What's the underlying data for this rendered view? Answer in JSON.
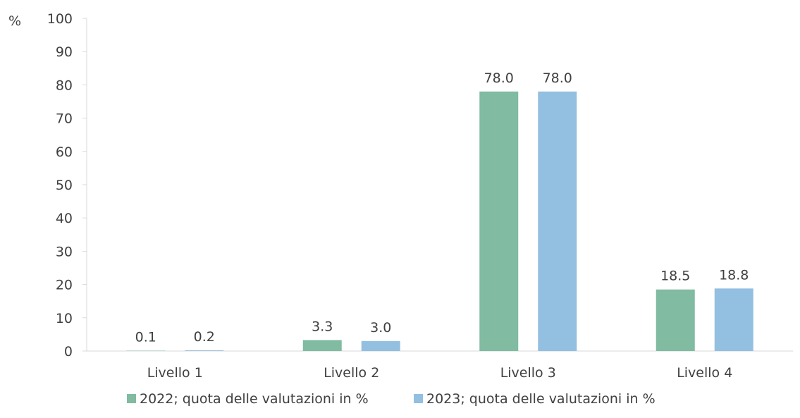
{
  "chart_data": {
    "type": "bar",
    "ylabel": "%",
    "ylim": [
      0,
      100
    ],
    "yticks": [
      0,
      10,
      20,
      30,
      40,
      50,
      60,
      70,
      80,
      90,
      100
    ],
    "categories": [
      "Livello 1",
      "Livello 2",
      "Livello 3",
      "Livello 4"
    ],
    "series": [
      {
        "name": "2022; quota delle valutazioni in %",
        "values": [
          0.1,
          3.3,
          78.0,
          18.5
        ],
        "color": "#80bba2"
      },
      {
        "name": "2023; quota delle valutazioni in %",
        "values": [
          0.2,
          3.0,
          78.0,
          18.8
        ],
        "color": "#93bfe1"
      }
    ],
    "data_labels": [
      [
        "0.1",
        "3.3",
        "78.0",
        "18.5"
      ],
      [
        "0.2",
        "3.0",
        "78.0",
        "18.8"
      ]
    ],
    "grid": false,
    "legend": "bottom"
  }
}
